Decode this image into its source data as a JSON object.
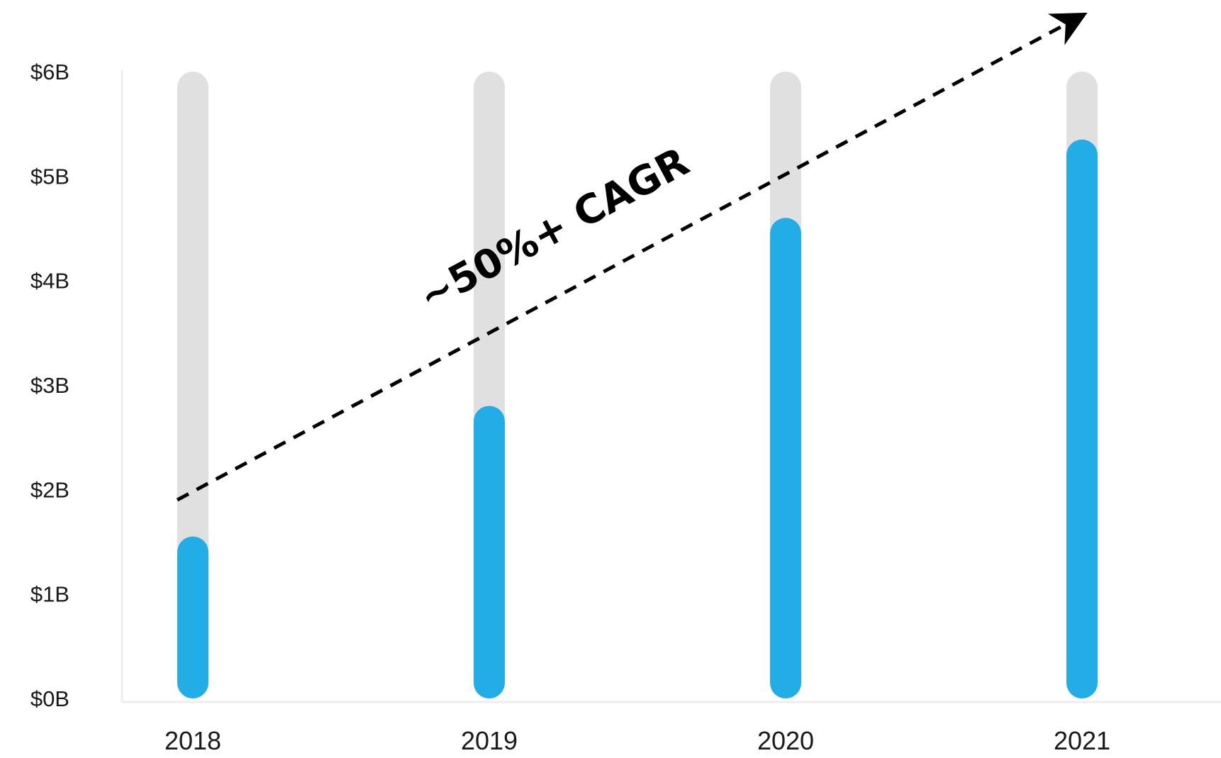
{
  "chart_data": {
    "type": "bar",
    "categories": [
      "2018",
      "2019",
      "2020",
      "2021"
    ],
    "values": [
      1.55,
      2.8,
      4.6,
      5.35
    ],
    "ylim": [
      0,
      6
    ],
    "yticks": [
      {
        "value": 0,
        "label": "$0B"
      },
      {
        "value": 1,
        "label": "$1B"
      },
      {
        "value": 2,
        "label": "$2B"
      },
      {
        "value": 3,
        "label": "$3B"
      },
      {
        "value": 4,
        "label": "$4B"
      },
      {
        "value": 5,
        "label": "$5B"
      },
      {
        "value": 6,
        "label": "$6B"
      }
    ],
    "grid": false,
    "annotation": {
      "text": "~50%+ CAGR",
      "from": {
        "x": "2018",
        "y": 1.9
      },
      "to": {
        "x": "2021",
        "y": 6.5
      }
    },
    "colors": {
      "bar": "#22ADE6",
      "track": "#E0E0E0",
      "axis": "#EDEDED",
      "arrow": "#000000"
    }
  }
}
